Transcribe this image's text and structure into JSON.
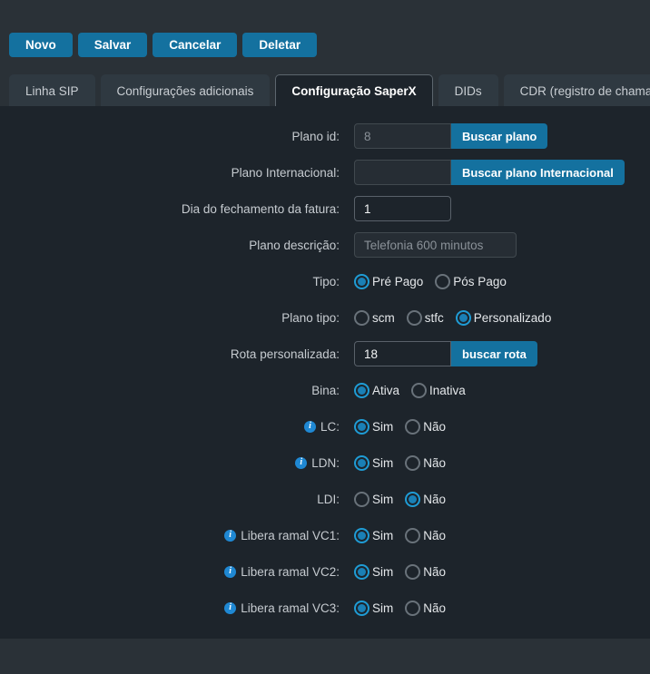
{
  "toolbar": {
    "buttons": [
      {
        "label": "Novo"
      },
      {
        "label": "Salvar"
      },
      {
        "label": "Cancelar"
      },
      {
        "label": "Deletar"
      }
    ]
  },
  "tabs": [
    {
      "label": "Linha SIP",
      "active": false
    },
    {
      "label": "Configurações adicionais",
      "active": false
    },
    {
      "label": "Configuração SaperX",
      "active": true
    },
    {
      "label": "DIDs",
      "active": false
    },
    {
      "label": "CDR (registro de chamadas)",
      "active": false
    }
  ],
  "form": {
    "plano_id": {
      "label": "Plano id:",
      "value": "8",
      "button": "Buscar plano"
    },
    "plano_internacional": {
      "label": "Plano Internacional:",
      "value": "",
      "button": "Buscar plano Internacional"
    },
    "dia_fechamento": {
      "label": "Dia do fechamento da fatura:",
      "value": "1"
    },
    "plano_descricao": {
      "label": "Plano descrição:",
      "value": "Telefonia 600 minutos"
    },
    "tipo": {
      "label": "Tipo:",
      "options": [
        {
          "label": "Pré Pago",
          "checked": true
        },
        {
          "label": "Pós Pago",
          "checked": false
        }
      ]
    },
    "plano_tipo": {
      "label": "Plano tipo:",
      "options": [
        {
          "label": "scm",
          "checked": false
        },
        {
          "label": "stfc",
          "checked": false
        },
        {
          "label": "Personalizado",
          "checked": true
        }
      ]
    },
    "rota": {
      "label": "Rota personalizada:",
      "value": "18",
      "button": "buscar rota"
    },
    "bina": {
      "label": "Bina:",
      "options": [
        {
          "label": "Ativa",
          "checked": true
        },
        {
          "label": "Inativa",
          "checked": false
        }
      ]
    },
    "lc": {
      "label": "LC:",
      "info_icon": true,
      "options": [
        {
          "label": "Sim",
          "checked": true
        },
        {
          "label": "Não",
          "checked": false
        }
      ]
    },
    "ldn": {
      "label": "LDN:",
      "info_icon": true,
      "options": [
        {
          "label": "Sim",
          "checked": true
        },
        {
          "label": "Não",
          "checked": false
        }
      ]
    },
    "ldi": {
      "label": "LDI:",
      "info_icon": false,
      "options": [
        {
          "label": "Sim",
          "checked": false
        },
        {
          "label": "Não",
          "checked": true
        }
      ]
    },
    "vc1": {
      "label": "Libera ramal VC1:",
      "info_icon": true,
      "options": [
        {
          "label": "Sim",
          "checked": true
        },
        {
          "label": "Não",
          "checked": false
        }
      ]
    },
    "vc2": {
      "label": "Libera ramal VC2:",
      "info_icon": true,
      "options": [
        {
          "label": "Sim",
          "checked": true
        },
        {
          "label": "Não",
          "checked": false
        }
      ]
    },
    "vc3": {
      "label": "Libera ramal VC3:",
      "info_icon": true,
      "options": [
        {
          "label": "Sim",
          "checked": true
        },
        {
          "label": "Não",
          "checked": false
        }
      ]
    }
  },
  "colors": {
    "accent_blue": "#14719f",
    "radio_blue": "#1f9cd5",
    "info_blue": "#1f88d3",
    "outer_bg": "#2a3137",
    "panel_bg": "#1d242b"
  }
}
